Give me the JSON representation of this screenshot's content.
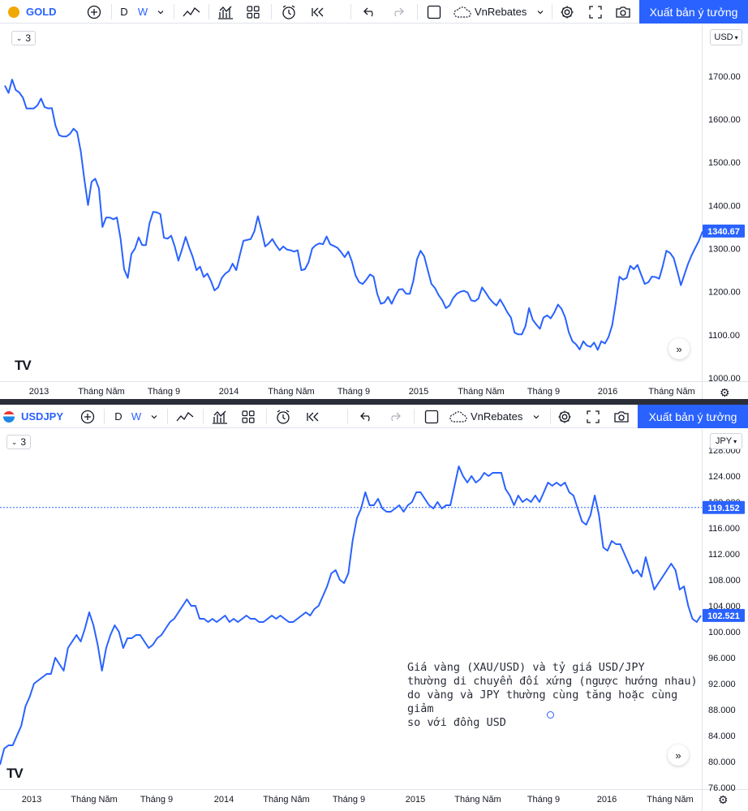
{
  "toolbar": {
    "interval_d": "D",
    "interval_w": "W",
    "brand": "VnRebates",
    "publish_label": "Xuất bản ý tưởng",
    "icons": [
      "add-symbol-icon",
      "chevron-down-icon",
      "line-chart-icon",
      "indicators-icon",
      "layouts-icon",
      "alert-icon",
      "replay-icon",
      "undo-icon",
      "redo-icon",
      "rectangle-icon",
      "cloud-icon",
      "settings-icon",
      "fullscreen-icon",
      "camera-icon"
    ]
  },
  "top_panel": {
    "symbol": "GOLD",
    "badge": "3",
    "currency": "USD",
    "last_price": "1340.67",
    "last_price_color": "#2962ff",
    "line_color": "#2962ff",
    "logo": "TV",
    "chart_data": {
      "type": "line",
      "y_ticks": [
        1000,
        1100,
        1200,
        1300,
        1400,
        1500,
        1600,
        1700
      ],
      "y_tick_labels": [
        "1000.00",
        "1100.00",
        "1200.00",
        "1300.00",
        "1400.00",
        "1500.00",
        "1600.00",
        "1700.00"
      ],
      "ylim": [
        1000,
        1775
      ],
      "x_tick_labels": [
        "2013",
        "Tháng Năm",
        "Tháng 9",
        "2014",
        "Tháng Năm",
        "Tháng 9",
        "2015",
        "Tháng Năm",
        "Tháng 9",
        "2016",
        "Tháng Năm"
      ],
      "values": [
        1678,
        1661,
        1692,
        1668,
        1662,
        1650,
        1625,
        1625,
        1625,
        1632,
        1648,
        1628,
        1625,
        1626,
        1585,
        1563,
        1560,
        1560,
        1566,
        1578,
        1570,
        1525,
        1460,
        1401,
        1455,
        1462,
        1440,
        1350,
        1372,
        1372,
        1368,
        1372,
        1323,
        1252,
        1232,
        1288,
        1300,
        1326,
        1308,
        1308,
        1358,
        1385,
        1384,
        1380,
        1325,
        1323,
        1330,
        1305,
        1272,
        1298,
        1327,
        1302,
        1280,
        1250,
        1258,
        1234,
        1242,
        1225,
        1203,
        1210,
        1232,
        1242,
        1248,
        1265,
        1250,
        1285,
        1318,
        1320,
        1322,
        1340,
        1375,
        1342,
        1305,
        1312,
        1322,
        1308,
        1296,
        1305,
        1298,
        1296,
        1293,
        1296,
        1250,
        1252,
        1268,
        1300,
        1308,
        1312,
        1310,
        1328,
        1310,
        1306,
        1302,
        1292,
        1280,
        1293,
        1270,
        1238,
        1222,
        1218,
        1228,
        1240,
        1235,
        1195,
        1172,
        1175,
        1188,
        1172,
        1190,
        1205,
        1206,
        1195,
        1195,
        1225,
        1275,
        1295,
        1282,
        1250,
        1218,
        1208,
        1192,
        1180,
        1162,
        1168,
        1185,
        1195,
        1200,
        1202,
        1198,
        1180,
        1178,
        1184,
        1210,
        1198,
        1185,
        1175,
        1168,
        1182,
        1168,
        1152,
        1140,
        1105,
        1101,
        1101,
        1120,
        1162,
        1135,
        1124,
        1114,
        1140,
        1145,
        1138,
        1152,
        1170,
        1160,
        1140,
        1106,
        1085,
        1078,
        1066,
        1085,
        1075,
        1072,
        1082,
        1065,
        1085,
        1080,
        1095,
        1122,
        1175,
        1235,
        1228,
        1232,
        1260,
        1252,
        1262,
        1240,
        1218,
        1222,
        1235,
        1234,
        1230,
        1260,
        1295,
        1290,
        1278,
        1248,
        1215,
        1240,
        1265,
        1285,
        1302,
        1318,
        1340
      ]
    },
    "settings_icon": "gear-icon"
  },
  "bottom_panel": {
    "symbol": "USDJPY",
    "badge": "3",
    "currency": "JPY",
    "last_price": "102.521",
    "last_price_color": "#2962ff",
    "crosshair_price": "119.152",
    "crosshair_color": "#2962ff",
    "line_color": "#2962ff",
    "logo": "TV",
    "annotation": "Giá vàng (XAU/USD) và tỷ giá USD/JPY thường di chuyển đối xứng (ngược hướng nhau) do vàng và JPY thường cùng tăng hoặc cùng giảm so với đồng USD",
    "annotation_lines": [
      "Giá vàng (XAU/USD) và tỷ giá USD/JPY",
      "thường di chuyển đối xứng (ngược hướng nhau)",
      "do vàng và JPY thường cùng tăng hoặc cùng giảm",
      "so với đồng USD"
    ],
    "chart_data": {
      "type": "line",
      "y_ticks": [
        76,
        80,
        84,
        88,
        92,
        96,
        100,
        104,
        108,
        112,
        116,
        120,
        124,
        128
      ],
      "y_tick_labels": [
        "76.000",
        "80.000",
        "84.000",
        "88.000",
        "92.000",
        "96.000",
        "100.000",
        "104.000",
        "108.000",
        "112.000",
        "116.000",
        "120.000",
        "124.000",
        "128.000"
      ],
      "ylim": [
        75,
        129.5
      ],
      "x_tick_labels": [
        "2013",
        "Tháng Năm",
        "Tháng 9",
        "2014",
        "Tháng Năm",
        "Tháng 9",
        "2015",
        "Tháng Năm",
        "Tháng 9",
        "2016",
        "Tháng Năm"
      ],
      "values": [
        79.5,
        82.0,
        82.5,
        82.5,
        84.0,
        85.5,
        88.5,
        90.0,
        92.0,
        92.5,
        93.0,
        93.5,
        93.5,
        96.0,
        95.0,
        94.0,
        97.5,
        98.5,
        99.5,
        98.5,
        100.5,
        103.0,
        101.0,
        98.0,
        94.0,
        97.5,
        99.5,
        101.0,
        100.0,
        97.5,
        99.0,
        99.0,
        99.5,
        99.5,
        98.5,
        97.5,
        98.0,
        99.0,
        99.5,
        100.5,
        101.5,
        102.0,
        103.0,
        104.0,
        105.0,
        104.0,
        104.0,
        102.0,
        102.0,
        101.5,
        102.0,
        101.5,
        102.0,
        102.5,
        101.5,
        102.0,
        101.5,
        102.0,
        102.5,
        102.0,
        102.0,
        101.5,
        101.5,
        102.0,
        102.5,
        102.0,
        102.5,
        102.0,
        101.5,
        101.5,
        102.0,
        102.5,
        103.0,
        102.5,
        103.5,
        104.0,
        105.5,
        107.0,
        109.0,
        109.5,
        108.0,
        107.5,
        109.0,
        114.0,
        117.5,
        119.0,
        121.5,
        119.5,
        119.5,
        120.5,
        119.0,
        118.5,
        118.5,
        119.0,
        119.5,
        118.5,
        119.5,
        120.0,
        121.5,
        121.5,
        120.5,
        119.5,
        119.0,
        120.0,
        119.0,
        119.5,
        119.5,
        122.5,
        125.5,
        124.0,
        123.0,
        124.0,
        123.0,
        123.5,
        124.5,
        124.0,
        124.5,
        124.5,
        124.5,
        122.0,
        121.0,
        119.5,
        121.0,
        120.0,
        120.5,
        120.0,
        121.0,
        120.0,
        121.5,
        123.0,
        122.5,
        123.0,
        122.5,
        123.0,
        121.5,
        121.0,
        119.0,
        117.0,
        116.5,
        118.0,
        121.0,
        118.0,
        113.0,
        112.5,
        114.0,
        113.5,
        113.5,
        112.0,
        110.5,
        109.0,
        109.5,
        108.5,
        111.5,
        109.0,
        106.5,
        107.5,
        108.5,
        109.5,
        110.5,
        109.5,
        106.5,
        107.0,
        104.0,
        102.0,
        101.5,
        102.5
      ]
    },
    "settings_icon": "gear-icon"
  }
}
